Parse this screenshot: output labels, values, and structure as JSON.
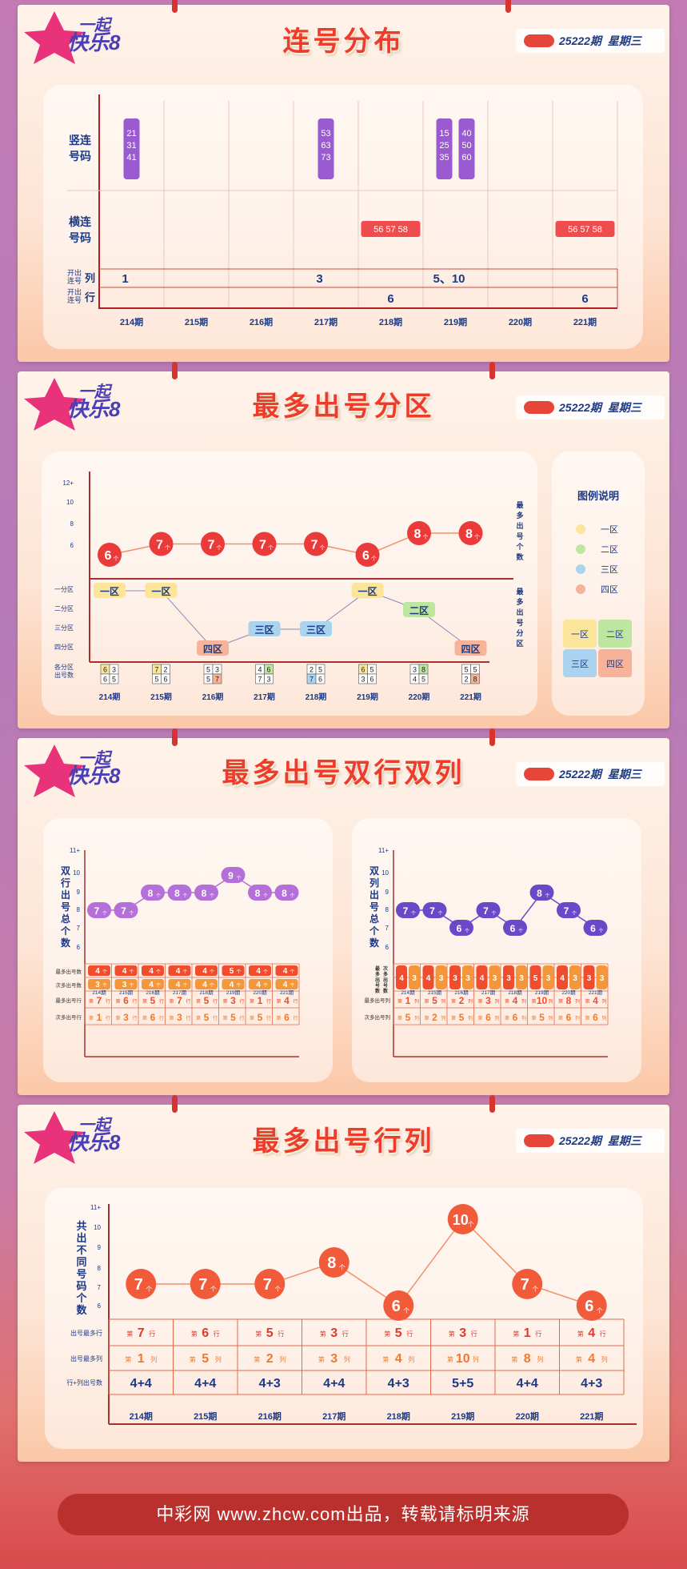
{
  "logo_text": "一起快乐8",
  "issue_label": "25222期",
  "weekday": "星期三",
  "periods": [
    "214期",
    "215期",
    "216期",
    "217期",
    "218期",
    "219期",
    "220期",
    "221期"
  ],
  "section1": {
    "title": "连号分布",
    "row_vert": "竖连号码",
    "row_horiz": "横连号码",
    "row_col": "开出连号列",
    "row_row": "开出连号行",
    "vertical": [
      [
        "21",
        "31",
        "41"
      ],
      [],
      [],
      [
        "53",
        "63",
        "73"
      ],
      [],
      [
        "15",
        "25",
        "35",
        "|",
        "40",
        "50",
        "60"
      ],
      [],
      []
    ],
    "horizontal": [
      "",
      "",
      "",
      "",
      "56 57 58",
      "",
      "",
      "56 57 58"
    ],
    "col_values": [
      "1",
      "",
      "",
      "3",
      "",
      "5、10",
      "",
      ""
    ],
    "row_values": [
      "",
      "",
      "",
      "",
      "6",
      "",
      "",
      "6"
    ]
  },
  "section2": {
    "title": "最多出号分区",
    "y_ticks": [
      "12+",
      "10",
      "8",
      "6"
    ],
    "right_label_top": "最多出号个数",
    "right_label_bottom": "最多出号分区",
    "zone_labels": [
      "一分区",
      "二分区",
      "三分区",
      "四分区"
    ],
    "zone_row_label": "各分区出号数",
    "counts": [
      6,
      7,
      7,
      7,
      7,
      6,
      8,
      8
    ],
    "count_unit": "个",
    "zones": [
      "一区",
      "一区",
      "四区",
      "三区",
      "三区",
      "一区",
      "二区",
      "四区"
    ],
    "zone_index": [
      0,
      0,
      3,
      2,
      2,
      0,
      1,
      3
    ],
    "grids": [
      [
        "6",
        "3",
        "6",
        "5"
      ],
      [
        "7",
        "2",
        "5",
        "6"
      ],
      [
        "5",
        "3",
        "5",
        "7"
      ],
      [
        "4",
        "6",
        "7",
        "3"
      ],
      [
        "2",
        "5",
        "7",
        "6"
      ],
      [
        "6",
        "5",
        "3",
        "6"
      ],
      [
        "3",
        "8",
        "4",
        "5"
      ],
      [
        "5",
        "5",
        "2",
        "8"
      ]
    ],
    "legend_title": "图例说明",
    "legend": [
      "一区",
      "二区",
      "三区",
      "四区"
    ],
    "legend_colors": [
      "#fbe59a",
      "#bfe6a0",
      "#a9d3ef",
      "#f6b39a"
    ]
  },
  "section3": {
    "title": "最多出号双行双列",
    "left_label": "双行出号总个数",
    "right_label": "双列出号总个数",
    "y_ticks": [
      "11+",
      "10",
      "9",
      "8",
      "7",
      "6"
    ],
    "row_totals": [
      7,
      7,
      8,
      8,
      8,
      9,
      8,
      8
    ],
    "col_totals": [
      7,
      7,
      6,
      7,
      6,
      8,
      7,
      6
    ],
    "row_max": [
      "4",
      "4",
      "4",
      "4",
      "4",
      "5",
      "4",
      "4"
    ],
    "row_second": [
      "3",
      "3",
      "4",
      "4",
      "4",
      "4",
      "4",
      "4"
    ],
    "col_max": [
      "4",
      "4",
      "3",
      "4",
      "3",
      "5",
      "4",
      "3"
    ],
    "col_second": [
      "3",
      "3",
      "3",
      "3",
      "3",
      "3",
      "3",
      "3"
    ],
    "row_max_row": [
      "7",
      "6",
      "5",
      "7",
      "5",
      "3",
      "1",
      "4"
    ],
    "row_second_row": [
      "1",
      "3",
      "6",
      "3",
      "5",
      "5",
      "5",
      "6"
    ],
    "col_max_col": [
      "1",
      "5",
      "2",
      "3",
      "4",
      "10",
      "8",
      "4"
    ],
    "col_second_col": [
      "5",
      "2",
      "5",
      "6",
      "6",
      "5",
      "6",
      "6"
    ],
    "lbl_max_num": "最多出号数",
    "lbl_second_num": "次多出号数",
    "lbl_max_row": "最多出号行",
    "lbl_second_row": "次多出号行",
    "lbl_max_col": "最多出号列",
    "lbl_second_col": "次多出号列",
    "unit_row": "行",
    "unit_col": "列",
    "prefix": "第",
    "unit": "个"
  },
  "section4": {
    "title": "最多出号行列",
    "y_label": "共出不同号码个数",
    "y_ticks": [
      "11+",
      "10",
      "9",
      "8",
      "7",
      "6"
    ],
    "totals": [
      7,
      7,
      7,
      8,
      6,
      10,
      7,
      6
    ],
    "max_row": [
      "7",
      "6",
      "5",
      "3",
      "5",
      "3",
      "1",
      "4"
    ],
    "max_col": [
      "1",
      "5",
      "2",
      "3",
      "4",
      "10",
      "8",
      "4"
    ],
    "combo": [
      "4+4",
      "4+4",
      "4+3",
      "4+4",
      "4+3",
      "5+5",
      "4+4",
      "4+3"
    ],
    "lbl_max_row": "出号最多行",
    "lbl_max_col": "出号最多列",
    "lbl_combo": "行+列出号数",
    "unit_row": "行",
    "unit_col": "列",
    "prefix": "第",
    "unit": "个"
  },
  "footer": "中彩网 www.zhcw.com出品，转载请标明来源",
  "chart_data": [
    {
      "type": "table",
      "title": "连号分布",
      "categories": [
        "214期",
        "215期",
        "216期",
        "217期",
        "218期",
        "219期",
        "220期",
        "221期"
      ],
      "rows": {
        "竖连号码": [
          "21 31 41",
          "",
          "",
          "53 63 73",
          "",
          "15 25 35 / 40 50 60",
          "",
          ""
        ],
        "横连号码": [
          "",
          "",
          "",
          "",
          "56 57 58",
          "",
          "",
          "56 57 58"
        ],
        "开出连号列": [
          "1",
          "",
          "",
          "3",
          "",
          "5、10",
          "",
          ""
        ],
        "开出连号行": [
          "",
          "",
          "",
          "",
          "6",
          "",
          "",
          "6"
        ]
      }
    },
    {
      "type": "line",
      "title": "最多出号分区",
      "categories": [
        "214期",
        "215期",
        "216期",
        "217期",
        "218期",
        "219期",
        "220期",
        "221期"
      ],
      "series": [
        {
          "name": "最多出号个数",
          "values": [
            6,
            7,
            7,
            7,
            7,
            6,
            8,
            8
          ]
        }
      ],
      "zones": [
        "一区",
        "一区",
        "四区",
        "三区",
        "三区",
        "一区",
        "二区",
        "四区"
      ]
    },
    {
      "type": "line",
      "title": "最多出号双行双列",
      "categories": [
        "214期",
        "215期",
        "216期",
        "217期",
        "218期",
        "219期",
        "220期",
        "221期"
      ],
      "series": [
        {
          "name": "双行出号总个数",
          "values": [
            7,
            7,
            8,
            8,
            8,
            9,
            8,
            8
          ]
        },
        {
          "name": "双列出号总个数",
          "values": [
            7,
            7,
            6,
            7,
            6,
            8,
            7,
            6
          ]
        }
      ],
      "ylim": [
        6,
        11
      ]
    },
    {
      "type": "line",
      "title": "最多出号行列",
      "categories": [
        "214期",
        "215期",
        "216期",
        "217期",
        "218期",
        "219期",
        "220期",
        "221期"
      ],
      "series": [
        {
          "name": "共出不同号码个数",
          "values": [
            7,
            7,
            7,
            8,
            6,
            10,
            7,
            6
          ]
        }
      ],
      "ylim": [
        6,
        11
      ]
    }
  ]
}
